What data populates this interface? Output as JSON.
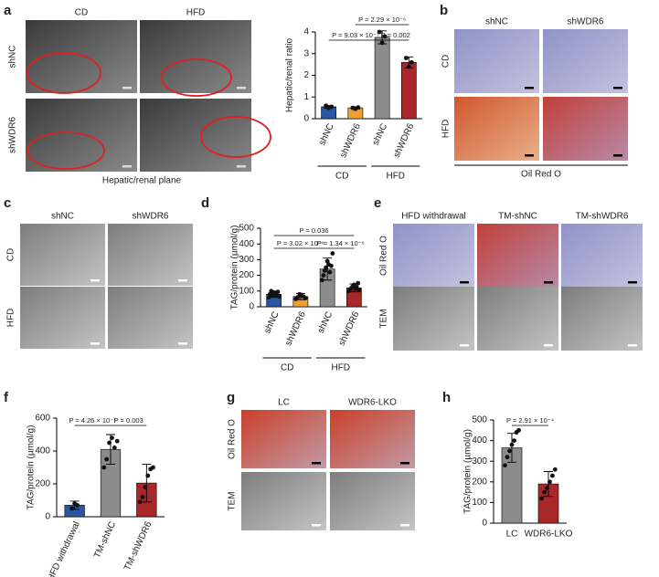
{
  "chart_data": [
    {
      "type": "bar",
      "ylabel": "Hepatic/renal ratio",
      "categories": [
        "shNC",
        "shWDR6",
        "shNC",
        "shWDR6"
      ],
      "groups": [
        "CD",
        "HFD"
      ],
      "values": [
        0.55,
        0.5,
        3.75,
        2.6
      ],
      "errors": [
        0.06,
        0.05,
        0.3,
        0.25
      ],
      "points": [
        [
          0.6,
          0.5,
          0.55
        ],
        [
          0.5,
          0.45,
          0.52
        ],
        [
          4.0,
          3.5,
          3.8
        ],
        [
          2.8,
          2.4,
          2.6
        ]
      ],
      "colors": [
        "#2a55a3",
        "#f0a030",
        "#8c8c8c",
        "#a8282a"
      ],
      "ylim": [
        0,
        4
      ],
      "yticks": [
        0,
        1,
        2,
        3,
        4
      ],
      "annotations": [
        "P = 2.29 × 10⁻⁶",
        "P = 9.03 × 10⁻⁷",
        "P = 0.002"
      ]
    },
    {
      "type": "bar",
      "ylabel": "TAG/protein (µmol/g)",
      "categories": [
        "shNC",
        "shWDR6",
        "shNC",
        "shWDR6"
      ],
      "groups": [
        "CD",
        "HFD"
      ],
      "values": [
        80,
        65,
        240,
        120
      ],
      "errors": [
        20,
        20,
        70,
        25
      ],
      "points": [
        [
          60,
          80,
          100,
          70,
          90,
          85,
          75,
          95,
          65
        ],
        [
          50,
          60,
          80,
          70,
          65,
          55
        ],
        [
          170,
          200,
          230,
          250,
          290,
          270,
          220,
          260,
          340
        ],
        [
          100,
          110,
          120,
          130,
          140,
          115,
          125,
          150,
          105
        ]
      ],
      "colors": [
        "#2a55a3",
        "#f0a030",
        "#8c8c8c",
        "#a8282a"
      ],
      "ylim": [
        0,
        500
      ],
      "yticks": [
        0,
        100,
        200,
        300,
        400,
        500
      ],
      "annotations": [
        "P = 0.036",
        "P = 3.02 × 10⁻⁶",
        "P = 1.34 × 10⁻⁶"
      ]
    },
    {
      "type": "bar",
      "ylabel": "TAG/protein (µmol/g)",
      "categories": [
        "HFD withdrawal",
        "TM-shNC",
        "TM-shWDR6"
      ],
      "values": [
        70,
        410,
        205
      ],
      "errors": [
        25,
        90,
        115
      ],
      "points": [
        [
          50,
          80,
          70
        ],
        [
          300,
          350,
          450,
          480,
          420,
          460
        ],
        [
          90,
          120,
          180,
          250,
          290,
          300
        ]
      ],
      "colors": [
        "#2a55a3",
        "#8c8c8c",
        "#a8282a"
      ],
      "ylim": [
        0,
        600
      ],
      "yticks": [
        0,
        200,
        400,
        600
      ],
      "annotations": [
        "P = 4.26 × 10⁻⁵",
        "P = 0.003"
      ]
    },
    {
      "type": "bar",
      "ylabel": "TAG/protein (µmol/g)",
      "categories": [
        "LC",
        "WDR6-LKO"
      ],
      "values": [
        365,
        190
      ],
      "errors": [
        70,
        60
      ],
      "points": [
        [
          280,
          320,
          350,
          380,
          400,
          440,
          450
        ],
        [
          120,
          150,
          170,
          200,
          230,
          260
        ]
      ],
      "colors": [
        "#8c8c8c",
        "#a8282a"
      ],
      "ylim": [
        0,
        500
      ],
      "yticks": [
        0,
        100,
        200,
        300,
        400,
        500
      ],
      "annotations": [
        "P = 2.91 × 10⁻⁴"
      ]
    }
  ],
  "panels": {
    "a": {
      "label": "a",
      "columns": [
        "CD",
        "HFD"
      ],
      "rows": [
        "shNC",
        "shWDR6"
      ],
      "caption": "Hepatic/renal plane"
    },
    "b": {
      "label": "b",
      "columns": [
        "shNC",
        "shWDR6"
      ],
      "rows": [
        "CD",
        "HFD"
      ],
      "caption": "Oil Red O"
    },
    "c": {
      "label": "c",
      "columns": [
        "shNC",
        "shWDR6"
      ],
      "rows": [
        "CD",
        "HFD"
      ]
    },
    "d": {
      "label": "d"
    },
    "e": {
      "label": "e",
      "columns": [
        "HFD withdrawal",
        "TM-shNC",
        "TM-shWDR6"
      ],
      "rows": [
        "Oil Red O",
        "TEM"
      ]
    },
    "f": {
      "label": "f"
    },
    "g": {
      "label": "g",
      "columns": [
        "LC",
        "WDR6-LKO"
      ],
      "rows": [
        "Oil Red O",
        "TEM"
      ]
    },
    "h": {
      "label": "h"
    }
  }
}
